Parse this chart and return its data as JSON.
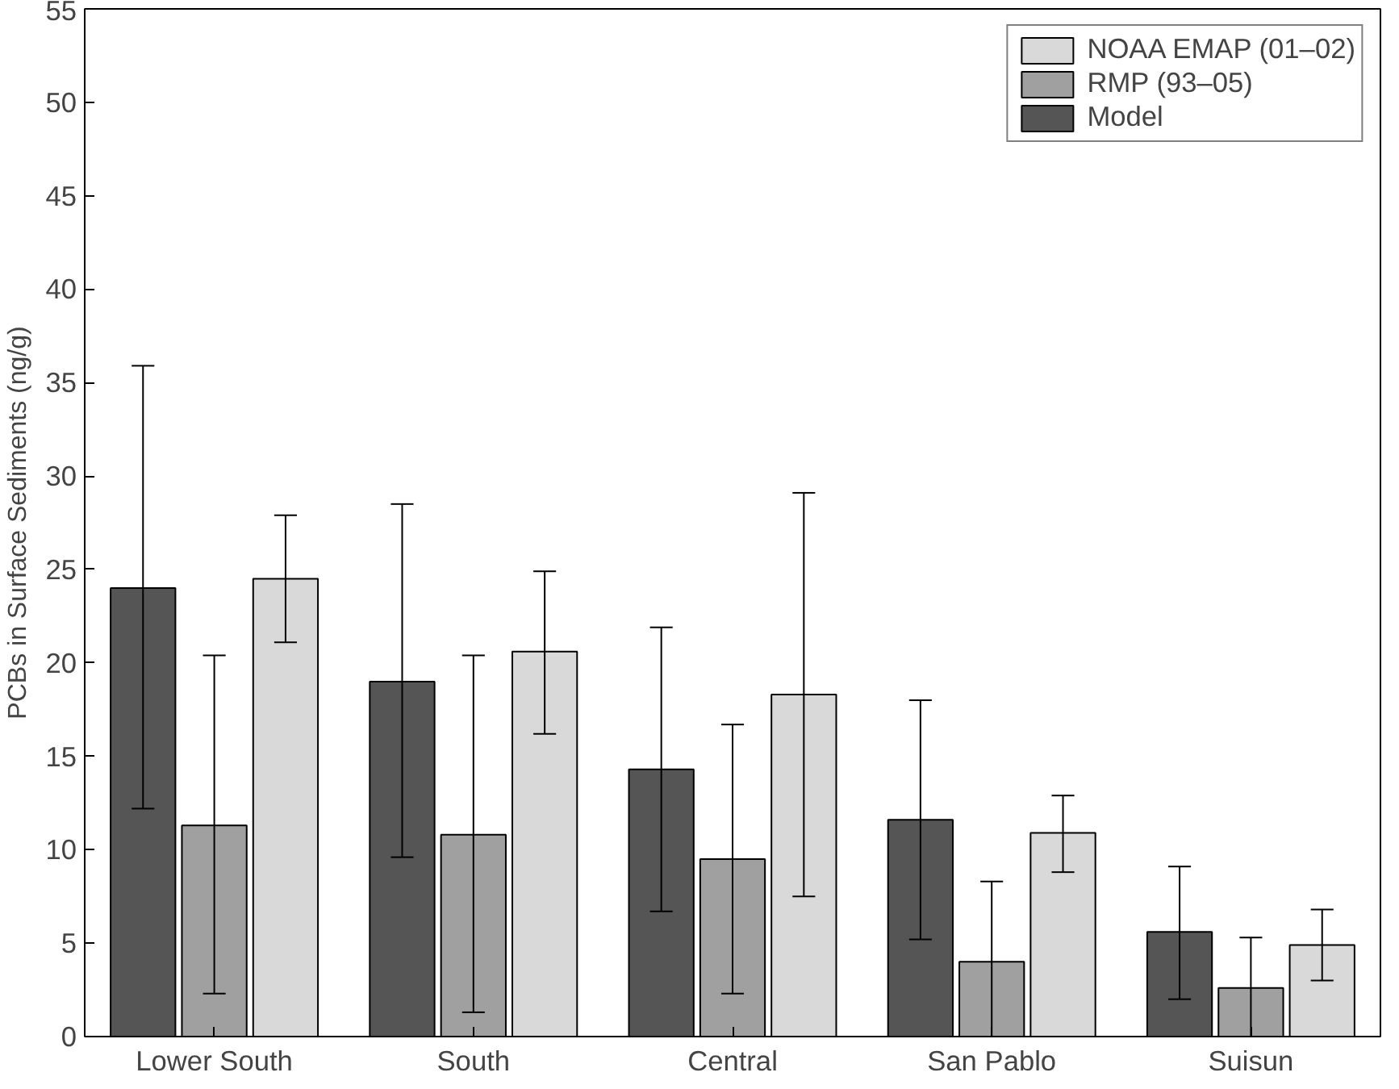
{
  "chart_data": {
    "type": "bar",
    "ylabel": "PCBs in Surface Sediments (ng/g)",
    "categories": [
      "Lower South",
      "South",
      "Central",
      "San Pablo",
      "Suisun"
    ],
    "series": [
      {
        "name": "Model",
        "color": "#555555",
        "values": [
          24.0,
          19.0,
          14.3,
          11.6,
          5.6
        ],
        "errors": [
          [
            12.2,
            35.9
          ],
          [
            9.6,
            28.5
          ],
          [
            6.7,
            21.9
          ],
          [
            5.2,
            18.0
          ],
          [
            2.0,
            9.1
          ]
        ]
      },
      {
        "name": "RMP (93–05)",
        "color": "#a0a0a0",
        "values": [
          11.3,
          10.8,
          9.5,
          4.0,
          2.6
        ],
        "errors": [
          [
            2.3,
            20.4
          ],
          [
            1.3,
            20.4
          ],
          [
            2.3,
            16.7
          ],
          [
            0,
            8.3
          ],
          [
            0,
            5.3
          ]
        ]
      },
      {
        "name": "NOAA EMAP (01–02)",
        "color": "#d9d9d9",
        "values": [
          24.5,
          20.6,
          18.3,
          10.9,
          4.9
        ],
        "errors": [
          [
            21.1,
            27.9
          ],
          [
            16.2,
            24.9
          ],
          [
            7.5,
            29.1
          ],
          [
            8.8,
            12.9
          ],
          [
            3.0,
            6.8
          ]
        ]
      }
    ],
    "ylim": [
      0,
      55
    ],
    "yticks": [
      0,
      5,
      10,
      15,
      20,
      25,
      30,
      35,
      40,
      45,
      50,
      55
    ],
    "grid": false,
    "legend": "top right"
  }
}
